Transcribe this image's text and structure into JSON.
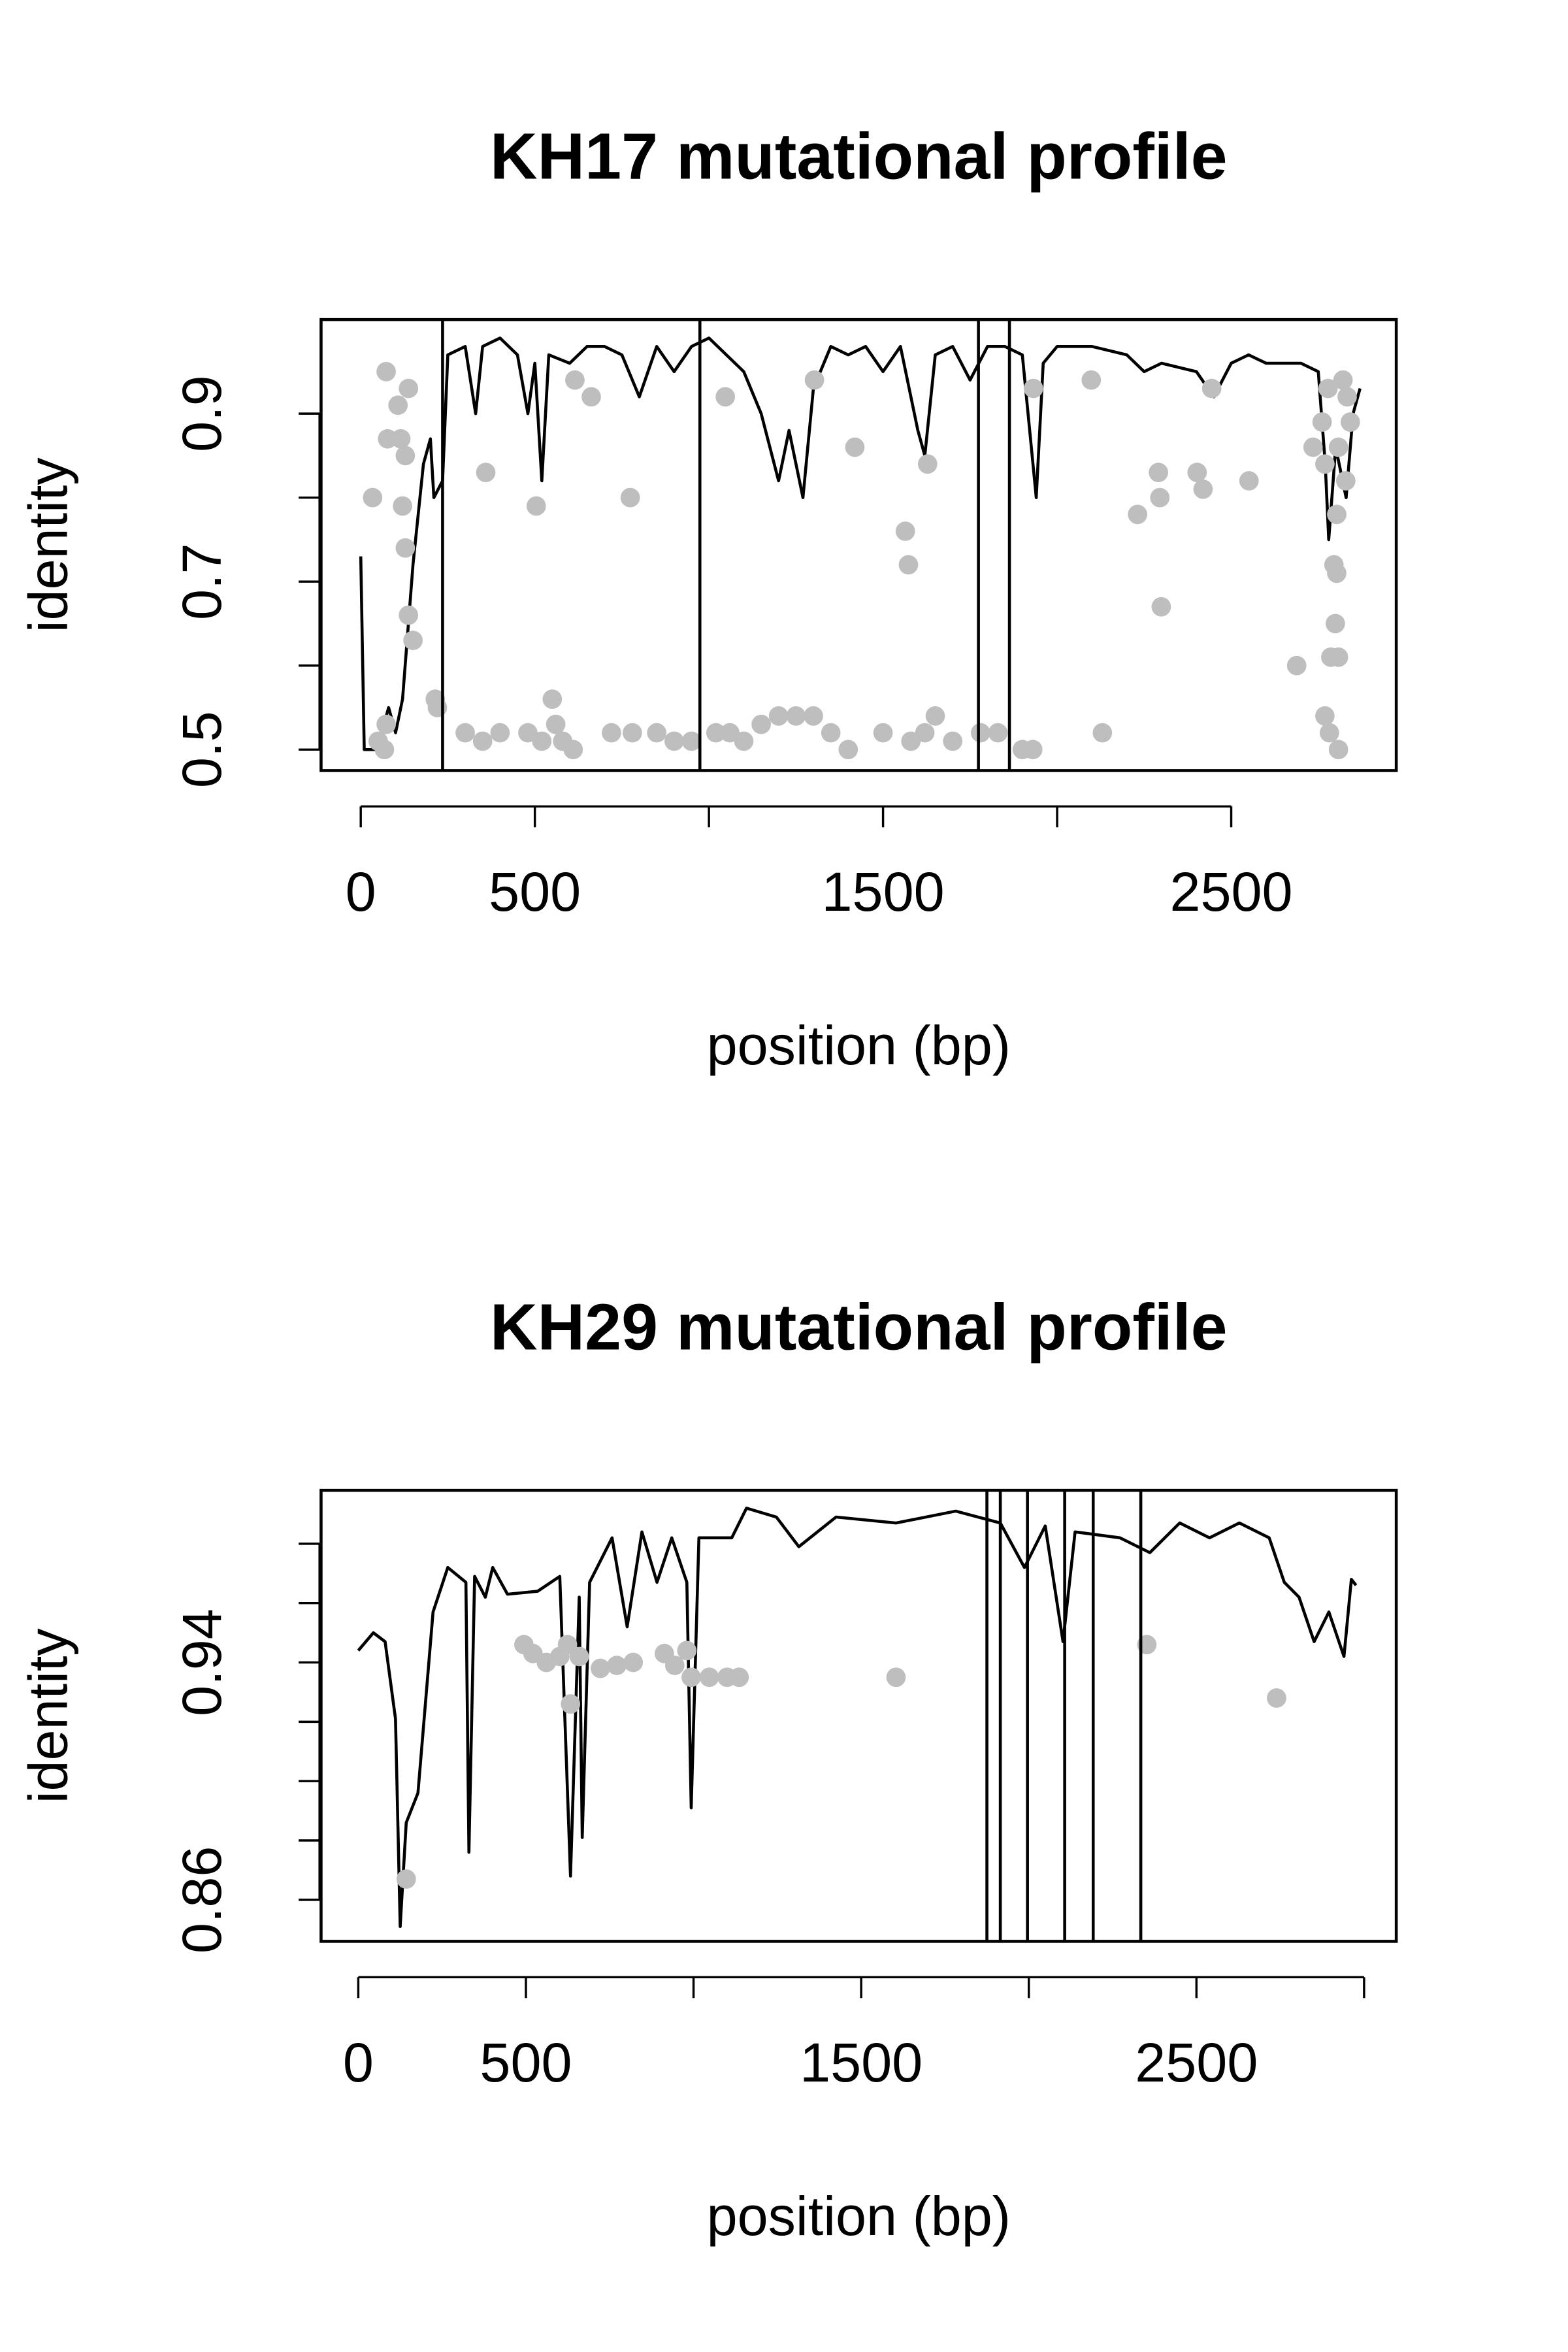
{
  "chart_data": [
    {
      "type": "line",
      "title": "KH17 mutational profile",
      "xlabel": "position (bp)",
      "ylabel": "identity",
      "xlim": [
        -114,
        2974
      ],
      "ylim": [
        0.475,
        1.012
      ],
      "xticks": [
        0,
        500,
        {
          "value": 1000,
          "label": null
        },
        1500,
        {
          "value": 2000,
          "label": null
        },
        2500
      ],
      "yticks": [
        0.5,
        {
          "value": 0.6,
          "label": null
        },
        0.7,
        {
          "value": 0.8,
          "label": null
        },
        0.9
      ],
      "vlines": [
        235,
        974,
        1774,
        1863
      ],
      "vline_color": "#000000",
      "line": {
        "color": "#000000",
        "x": [
          0,
          10,
          40,
          60,
          80,
          100,
          120,
          150,
          180,
          200,
          210,
          235,
          250,
          300,
          330,
          350,
          400,
          450,
          480,
          500,
          520,
          540,
          600,
          650,
          700,
          750,
          800,
          850,
          900,
          950,
          1000,
          1050,
          1100,
          1150,
          1200,
          1230,
          1270,
          1300,
          1350,
          1400,
          1450,
          1500,
          1550,
          1600,
          1620,
          1650,
          1700,
          1750,
          1800,
          1850,
          1900,
          1940,
          1960,
          2000,
          2100,
          2200,
          2250,
          2300,
          2400,
          2450,
          2500,
          2550,
          2600,
          2700,
          2750,
          2770,
          2780,
          2800,
          2830,
          2850,
          2870
        ],
        "values": [
          0.73,
          0.5,
          0.5,
          0.52,
          0.55,
          0.52,
          0.56,
          0.72,
          0.84,
          0.87,
          0.8,
          0.82,
          0.97,
          0.98,
          0.9,
          0.98,
          0.99,
          0.97,
          0.9,
          0.96,
          0.82,
          0.97,
          0.96,
          0.98,
          0.98,
          0.97,
          0.92,
          0.98,
          0.95,
          0.98,
          0.99,
          0.97,
          0.95,
          0.9,
          0.82,
          0.88,
          0.8,
          0.93,
          0.98,
          0.97,
          0.98,
          0.95,
          0.98,
          0.88,
          0.85,
          0.97,
          0.98,
          0.94,
          0.98,
          0.98,
          0.97,
          0.8,
          0.96,
          0.98,
          0.98,
          0.97,
          0.95,
          0.96,
          0.95,
          0.92,
          0.96,
          0.97,
          0.96,
          0.96,
          0.95,
          0.84,
          0.75,
          0.86,
          0.8,
          0.9,
          0.93
        ]
      },
      "points": {
        "color": "#bebebe",
        "x": [
          34,
          73,
          77,
          107,
          115,
          128,
          120,
          128,
          137,
          150,
          137,
          73,
          68,
          214,
          359,
          504,
          615,
          662,
          774,
          1047,
          1303,
          1419,
          1564,
          1573,
          1628,
          1932,
          2098,
          2231,
          2291,
          2295,
          2299,
          2402,
          2419,
          2444,
          2551,
          2688,
          2735,
          2761,
          2769,
          2778,
          2786,
          2795,
          2799,
          2803,
          2808,
          2808,
          2821,
          2829,
          2842,
          2833,
          2803,
          2769,
          2782,
          2808,
          220,
          300,
          350,
          400,
          480,
          520,
          550,
          560,
          580,
          610,
          720,
          780,
          850,
          900,
          950,
          1020,
          1060,
          1100,
          1150,
          1200,
          1250,
          1300,
          1350,
          1400,
          1500,
          1580,
          1620,
          1650,
          1700,
          1780,
          1830,
          1900,
          1930,
          2130,
          50
        ],
        "values": [
          0.8,
          0.95,
          0.87,
          0.91,
          0.87,
          0.85,
          0.79,
          0.74,
          0.66,
          0.63,
          0.93,
          0.53,
          0.5,
          0.56,
          0.83,
          0.79,
          0.94,
          0.92,
          0.8,
          0.92,
          0.94,
          0.86,
          0.76,
          0.72,
          0.84,
          0.93,
          0.94,
          0.78,
          0.83,
          0.8,
          0.67,
          0.83,
          0.81,
          0.93,
          0.82,
          0.6,
          0.86,
          0.89,
          0.84,
          0.93,
          0.61,
          0.72,
          0.65,
          0.78,
          0.61,
          0.86,
          0.94,
          0.82,
          0.89,
          0.92,
          0.71,
          0.54,
          0.52,
          0.5,
          0.55,
          0.52,
          0.51,
          0.52,
          0.52,
          0.51,
          0.56,
          0.53,
          0.51,
          0.5,
          0.52,
          0.52,
          0.52,
          0.51,
          0.51,
          0.52,
          0.52,
          0.51,
          0.53,
          0.54,
          0.54,
          0.54,
          0.52,
          0.5,
          0.52,
          0.51,
          0.52,
          0.54,
          0.51,
          0.52,
          0.52,
          0.5,
          0.5,
          0.52,
          0.51
        ]
      }
    },
    {
      "type": "line",
      "title": "KH29 mutational profile",
      "xlabel": "position (bp)",
      "ylabel": "identity",
      "xlim": [
        -111,
        3096
      ],
      "ylim": [
        0.846,
        0.998
      ],
      "xticks": [
        0,
        500,
        {
          "value": 1000,
          "label": null
        },
        1500,
        {
          "value": 2000,
          "label": null
        },
        2500,
        {
          "value": 3000,
          "label": null
        }
      ],
      "yticks": [
        0.86,
        {
          "value": 0.88,
          "label": null
        },
        {
          "value": 0.9,
          "label": null
        },
        {
          "value": 0.92,
          "label": null
        },
        0.94,
        {
          "value": 0.96,
          "label": null
        },
        {
          "value": 0.98,
          "label": null
        }
      ],
      "vlines": [
        1875,
        1915,
        1996,
        2107,
        2192,
        2334
      ],
      "vline_color": "#000000",
      "line": {
        "color": "#000000",
        "x": [
          0,
          45,
          80,
          111,
          125,
          143,
          178,
          223,
          267,
          321,
          330,
          347,
          379,
          401,
          445,
          535,
          601,
          633,
          659,
          668,
          690,
          757,
          802,
          846,
          891,
          935,
          980,
          993,
          1016,
          1114,
          1158,
          1247,
          1314,
          1425,
          1604,
          1782,
          1915,
          1987,
          2049,
          2102,
          2138,
          2272,
          2361,
          2450,
          2539,
          2628,
          2717,
          2762,
          2806,
          2851,
          2895,
          2940,
          2962,
          2976
        ],
        "values": [
          0.944,
          0.95,
          0.947,
          0.921,
          0.851,
          0.886,
          0.896,
          0.957,
          0.972,
          0.967,
          0.876,
          0.969,
          0.962,
          0.972,
          0.963,
          0.964,
          0.969,
          0.868,
          0.962,
          0.881,
          0.967,
          0.982,
          0.952,
          0.984,
          0.967,
          0.982,
          0.967,
          0.891,
          0.982,
          0.982,
          0.992,
          0.989,
          0.979,
          0.989,
          0.987,
          0.991,
          0.987,
          0.972,
          0.986,
          0.947,
          0.984,
          0.982,
          0.977,
          0.987,
          0.982,
          0.987,
          0.982,
          0.967,
          0.962,
          0.947,
          0.957,
          0.942,
          0.968,
          0.966
        ]
      },
      "points": {
        "color": "#bebebe",
        "x": [
          494,
          521,
          561,
          601,
          624,
          633,
          659,
          722,
          771,
          820,
          913,
          944,
          980,
          993,
          1047,
          1100,
          1136,
          1604,
          2352,
          2739,
          143
        ],
        "values": [
          0.946,
          0.943,
          0.94,
          0.942,
          0.946,
          0.926,
          0.942,
          0.938,
          0.939,
          0.94,
          0.943,
          0.939,
          0.944,
          0.935,
          0.935,
          0.935,
          0.935,
          0.935,
          0.946,
          0.928,
          0.867
        ]
      }
    }
  ]
}
